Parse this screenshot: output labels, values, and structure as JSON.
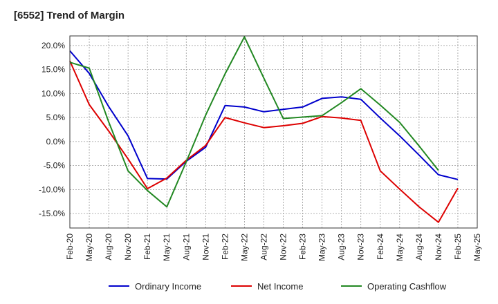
{
  "chart_data": {
    "type": "line",
    "title": "[6552]  Trend of Margin",
    "xlabel": "",
    "ylabel": "",
    "ylim": [
      -18,
      22
    ],
    "y_ticks": [
      -15,
      -10,
      -5,
      0,
      5,
      10,
      15,
      20
    ],
    "y_tick_labels": [
      "-15.0%",
      "-10.0%",
      "-5.0%",
      "0.0%",
      "5.0%",
      "10.0%",
      "15.0%",
      "20.0%"
    ],
    "categories": [
      "Feb-20",
      "May-20",
      "Aug-20",
      "Nov-20",
      "Feb-21",
      "May-21",
      "Aug-21",
      "Nov-21",
      "Feb-22",
      "May-22",
      "Aug-22",
      "Nov-22",
      "Feb-23",
      "May-23",
      "Aug-23",
      "Nov-23",
      "Feb-24",
      "May-24",
      "Aug-24",
      "Nov-24",
      "Feb-25",
      "May-25"
    ],
    "grid": true,
    "legend_position": "bottom",
    "series": [
      {
        "name": "Ordinary Income",
        "color": "#0000cc",
        "values": [
          18.9,
          14.2,
          7.3,
          1.2,
          -7.7,
          -7.8,
          -4.1,
          -1.2,
          7.5,
          7.2,
          6.2,
          6.7,
          7.2,
          9.0,
          9.3,
          8.8,
          4.9,
          1.2,
          -2.8,
          -6.9,
          -7.9,
          null
        ]
      },
      {
        "name": "Net Income",
        "color": "#dd0000",
        "values": [
          16.8,
          7.7,
          2.2,
          -3.6,
          -9.8,
          -7.6,
          -3.9,
          -0.8,
          5.0,
          3.9,
          2.9,
          3.3,
          3.8,
          5.2,
          4.9,
          4.4,
          -6.1,
          -9.9,
          -13.6,
          -16.8,
          -9.7,
          null
        ]
      },
      {
        "name": "Operating Cashflow",
        "color": "#228822",
        "values": [
          16.5,
          15.3,
          4.1,
          -6.1,
          -10.2,
          -13.6,
          -4.2,
          5.5,
          14.1,
          21.8,
          13.2,
          4.8,
          5.1,
          5.4,
          8.1,
          11.0,
          7.6,
          4.0,
          -0.9,
          -6.0,
          null,
          null
        ]
      }
    ]
  }
}
